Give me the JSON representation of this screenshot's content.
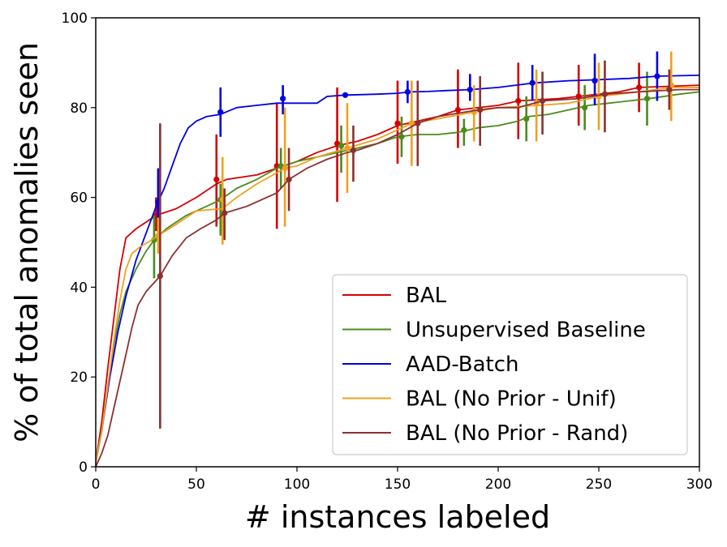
{
  "chart_data": {
    "type": "line",
    "title": "",
    "xlabel": "# instances labeled",
    "ylabel": "% of total anomalies seen",
    "xlim": [
      0,
      300
    ],
    "ylim": [
      0,
      100
    ],
    "xticks": [
      0,
      50,
      100,
      150,
      200,
      250,
      300
    ],
    "yticks": [
      0,
      20,
      40,
      60,
      80,
      100
    ],
    "grid": false,
    "legend_position": "lower-right",
    "series": [
      {
        "name": "BAL",
        "color": "#d40000",
        "curve": [
          [
            0,
            1
          ],
          [
            3,
            10
          ],
          [
            6,
            22
          ],
          [
            9,
            33
          ],
          [
            12,
            44
          ],
          [
            15,
            51
          ],
          [
            20,
            53
          ],
          [
            25,
            54.5
          ],
          [
            30,
            56
          ],
          [
            40,
            57.5
          ],
          [
            50,
            60
          ],
          [
            60,
            63
          ],
          [
            65,
            64
          ],
          [
            80,
            65
          ],
          [
            90,
            66.5
          ],
          [
            100,
            68
          ],
          [
            110,
            70
          ],
          [
            120,
            71.5
          ],
          [
            130,
            72.5
          ],
          [
            140,
            74
          ],
          [
            150,
            76
          ],
          [
            160,
            77
          ],
          [
            170,
            78
          ],
          [
            180,
            79.5
          ],
          [
            200,
            80.5
          ],
          [
            210,
            81.5
          ],
          [
            230,
            82
          ],
          [
            240,
            82.5
          ],
          [
            250,
            83
          ],
          [
            260,
            83.5
          ],
          [
            270,
            84.5
          ],
          [
            300,
            85
          ]
        ],
        "points": [
          {
            "x": 30,
            "y": 56,
            "lo": 52.5,
            "hi": 60
          },
          {
            "x": 60,
            "y": 64,
            "lo": 53.5,
            "hi": 74
          },
          {
            "x": 90,
            "y": 67,
            "lo": 53,
            "hi": 81
          },
          {
            "x": 120,
            "y": 72,
            "lo": 59,
            "hi": 84.5
          },
          {
            "x": 150,
            "y": 76.5,
            "lo": 67.5,
            "hi": 86
          },
          {
            "x": 180,
            "y": 79.5,
            "lo": 71,
            "hi": 88.5
          },
          {
            "x": 210,
            "y": 81.5,
            "lo": 73,
            "hi": 90
          },
          {
            "x": 240,
            "y": 82.5,
            "lo": 76,
            "hi": 89.5
          },
          {
            "x": 270,
            "y": 84.5,
            "lo": 79,
            "hi": 90
          }
        ]
      },
      {
        "name": "Unsupervised Baseline",
        "color": "#4a8c1c",
        "curve": [
          [
            0,
            1
          ],
          [
            3,
            8
          ],
          [
            6,
            18
          ],
          [
            9,
            27
          ],
          [
            12,
            34
          ],
          [
            15,
            39
          ],
          [
            20,
            44
          ],
          [
            25,
            48
          ],
          [
            29,
            50.5
          ],
          [
            35,
            53
          ],
          [
            45,
            56
          ],
          [
            55,
            58
          ],
          [
            62,
            59.5
          ],
          [
            70,
            62
          ],
          [
            80,
            64
          ],
          [
            90,
            66.5
          ],
          [
            100,
            68
          ],
          [
            110,
            69
          ],
          [
            120,
            70
          ],
          [
            130,
            71
          ],
          [
            140,
            72
          ],
          [
            150,
            73.5
          ],
          [
            160,
            74
          ],
          [
            170,
            74
          ],
          [
            180,
            74.5
          ],
          [
            190,
            75.5
          ],
          [
            200,
            76
          ],
          [
            210,
            77
          ],
          [
            215,
            78
          ],
          [
            225,
            78.5
          ],
          [
            235,
            79.5
          ],
          [
            245,
            80.5
          ],
          [
            255,
            81
          ],
          [
            265,
            81.5
          ],
          [
            275,
            82
          ],
          [
            290,
            83
          ],
          [
            300,
            83.5
          ]
        ],
        "points": [
          {
            "x": 29,
            "y": 50.5,
            "lo": 42,
            "hi": 56
          },
          {
            "x": 62,
            "y": 59.5,
            "lo": 51.5,
            "hi": 63
          },
          {
            "x": 92,
            "y": 67,
            "lo": 62,
            "hi": 71
          },
          {
            "x": 122,
            "y": 71.5,
            "lo": 65.5,
            "hi": 76
          },
          {
            "x": 152,
            "y": 73.5,
            "lo": 69,
            "hi": 78
          },
          {
            "x": 183,
            "y": 75,
            "lo": 71.5,
            "hi": 77.5
          },
          {
            "x": 214,
            "y": 77.5,
            "lo": 72.5,
            "hi": 82.5
          },
          {
            "x": 243,
            "y": 80,
            "lo": 75,
            "hi": 85
          },
          {
            "x": 274,
            "y": 82,
            "lo": 76,
            "hi": 88
          }
        ]
      },
      {
        "name": "AAD-Batch",
        "color": "#0000e6",
        "curve": [
          [
            0,
            1
          ],
          [
            3,
            8
          ],
          [
            7,
            20
          ],
          [
            11,
            30
          ],
          [
            15,
            38
          ],
          [
            20,
            46
          ],
          [
            25,
            52
          ],
          [
            30,
            58
          ],
          [
            34,
            62
          ],
          [
            38,
            67
          ],
          [
            42,
            72
          ],
          [
            46,
            75.5
          ],
          [
            50,
            77
          ],
          [
            55,
            78
          ],
          [
            62,
            78.5
          ],
          [
            70,
            80
          ],
          [
            80,
            80.5
          ],
          [
            90,
            81
          ],
          [
            100,
            81
          ],
          [
            110,
            81
          ],
          [
            115,
            82.5
          ],
          [
            124,
            82.8
          ],
          [
            140,
            83
          ],
          [
            150,
            83.2
          ],
          [
            156,
            83.5
          ],
          [
            165,
            83.6
          ],
          [
            175,
            83.8
          ],
          [
            186,
            84
          ],
          [
            200,
            84.5
          ],
          [
            218,
            85.5
          ],
          [
            235,
            86
          ],
          [
            248,
            86.2
          ],
          [
            265,
            86.5
          ],
          [
            279,
            87
          ],
          [
            300,
            87.2
          ]
        ],
        "points": [
          {
            "x": 31,
            "y": 59,
            "lo": 51.5,
            "hi": 66.5
          },
          {
            "x": 62,
            "y": 79,
            "lo": 73.5,
            "hi": 84.5
          },
          {
            "x": 93,
            "y": 82,
            "lo": 78.5,
            "hi": 85
          },
          {
            "x": 124,
            "y": 82.8,
            "lo": 82.3,
            "hi": 83.3
          },
          {
            "x": 155,
            "y": 83.5,
            "lo": 81,
            "hi": 86
          },
          {
            "x": 186,
            "y": 84,
            "lo": 81.5,
            "hi": 87.5
          },
          {
            "x": 217,
            "y": 85.5,
            "lo": 81.5,
            "hi": 89.5
          },
          {
            "x": 248,
            "y": 86,
            "lo": 80.5,
            "hi": 92
          },
          {
            "x": 279,
            "y": 87,
            "lo": 81.5,
            "hi": 92.5
          }
        ]
      },
      {
        "name": "BAL (No Prior - Unif)",
        "color": "#f0a020",
        "curve": [
          [
            0,
            1
          ],
          [
            3,
            8
          ],
          [
            6,
            18
          ],
          [
            9,
            28
          ],
          [
            12,
            37
          ],
          [
            15,
            44
          ],
          [
            18,
            47.5
          ],
          [
            22,
            49
          ],
          [
            26,
            50
          ],
          [
            31,
            51.5
          ],
          [
            40,
            54
          ],
          [
            50,
            57
          ],
          [
            63,
            57.5
          ],
          [
            70,
            60
          ],
          [
            80,
            63
          ],
          [
            94,
            66.5
          ],
          [
            100,
            67
          ],
          [
            110,
            69
          ],
          [
            125,
            71
          ],
          [
            140,
            73
          ],
          [
            157,
            76.5
          ],
          [
            170,
            77.5
          ],
          [
            188,
            79
          ],
          [
            200,
            80
          ],
          [
            220,
            80.5
          ],
          [
            235,
            81
          ],
          [
            250,
            82.5
          ],
          [
            270,
            83.5
          ],
          [
            286,
            84.5
          ],
          [
            300,
            84.5
          ]
        ],
        "points": [
          {
            "x": 31,
            "y": 51.5,
            "lo": 47.5,
            "hi": 55.5
          },
          {
            "x": 63,
            "y": 59.5,
            "lo": 49.5,
            "hi": 69
          },
          {
            "x": 94,
            "y": 66.5,
            "lo": 53.5,
            "hi": 80
          },
          {
            "x": 125,
            "y": 71,
            "lo": 61,
            "hi": 81
          },
          {
            "x": 157,
            "y": 76.5,
            "lo": 67,
            "hi": 86
          },
          {
            "x": 188,
            "y": 79,
            "lo": 72.5,
            "hi": 85
          },
          {
            "x": 219,
            "y": 81,
            "lo": 72.5,
            "hi": 88.5
          },
          {
            "x": 250,
            "y": 82.5,
            "lo": 75,
            "hi": 90
          },
          {
            "x": 286,
            "y": 85,
            "lo": 77,
            "hi": 92.5
          }
        ]
      },
      {
        "name": "BAL (No Prior - Rand)",
        "color": "#8b3030",
        "curve": [
          [
            0,
            0
          ],
          [
            3,
            3
          ],
          [
            6,
            7
          ],
          [
            9,
            13
          ],
          [
            12,
            19
          ],
          [
            15,
            25
          ],
          [
            18,
            31
          ],
          [
            21,
            36
          ],
          [
            25,
            39
          ],
          [
            28,
            40.5
          ],
          [
            32,
            42.5
          ],
          [
            38,
            47
          ],
          [
            45,
            51
          ],
          [
            52,
            53
          ],
          [
            60,
            55
          ],
          [
            64,
            56.5
          ],
          [
            75,
            58
          ],
          [
            90,
            61
          ],
          [
            96,
            64
          ],
          [
            105,
            66.5
          ],
          [
            115,
            68.5
          ],
          [
            125,
            70
          ],
          [
            130,
            70.5
          ],
          [
            140,
            72
          ],
          [
            150,
            74
          ],
          [
            160,
            76.5
          ],
          [
            170,
            78
          ],
          [
            190,
            79.5
          ],
          [
            200,
            80
          ],
          [
            210,
            80
          ],
          [
            222,
            81.5
          ],
          [
            240,
            82
          ],
          [
            253,
            83
          ],
          [
            270,
            83.5
          ],
          [
            290,
            84
          ],
          [
            300,
            84
          ]
        ],
        "points": [
          {
            "x": 32,
            "y": 42.5,
            "lo": 8.5,
            "hi": 76.5
          },
          {
            "x": 64,
            "y": 56.5,
            "lo": 50.5,
            "hi": 62
          },
          {
            "x": 96,
            "y": 64,
            "lo": 57,
            "hi": 71
          },
          {
            "x": 128,
            "y": 70.5,
            "lo": 63.5,
            "hi": 76
          },
          {
            "x": 160,
            "y": 76.5,
            "lo": 67,
            "hi": 86
          },
          {
            "x": 191,
            "y": 79.5,
            "lo": 71.5,
            "hi": 87
          },
          {
            "x": 222,
            "y": 81.5,
            "lo": 74,
            "hi": 88
          },
          {
            "x": 253,
            "y": 83,
            "lo": 74.5,
            "hi": 90.5
          },
          {
            "x": 285,
            "y": 84,
            "lo": 79.5,
            "hi": 88.5
          }
        ]
      }
    ]
  }
}
